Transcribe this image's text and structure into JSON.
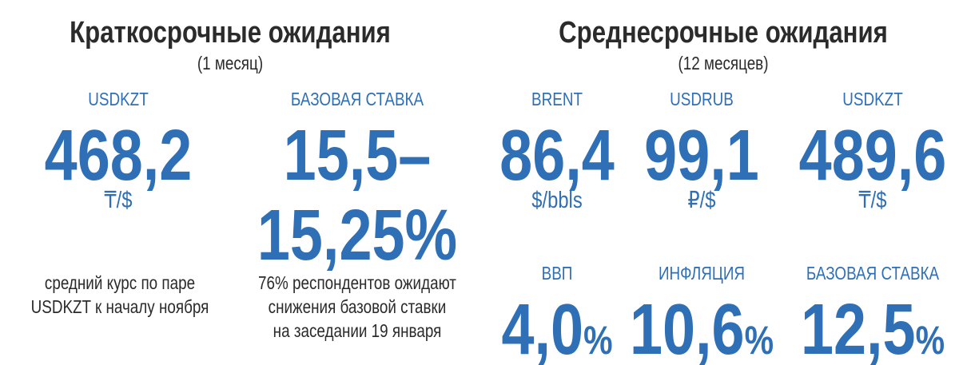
{
  "short_term": {
    "title": "Краткосрочные ожидания",
    "subtitle": "(1 месяц)",
    "items": [
      {
        "label": "USDKZT",
        "value": "468,2",
        "unit": "₸/$",
        "note": [
          "средний курс по паре",
          "USDKZT к началу ноября"
        ]
      },
      {
        "label": "БАЗОВАЯ СТАВКА",
        "value": [
          "15,5–",
          "15,25%"
        ],
        "note": [
          "76% респондентов ожидают",
          "снижения базовой ставки",
          "на заседании 19 января"
        ]
      }
    ]
  },
  "medium_term": {
    "title": "Среднесрочные ожидания",
    "subtitle": "(12 месяцев)",
    "items": [
      {
        "label": "BRENT",
        "value": "86,4",
        "unit": "$/bbls"
      },
      {
        "label": "USDRUB",
        "value": "99,1",
        "unit": "₽/$"
      },
      {
        "label": "USDKZT",
        "value": "489,6",
        "unit": "₸/$"
      },
      {
        "label": "ВВП",
        "value": "4,0",
        "suffix": "%"
      },
      {
        "label": "ИНФЛЯЦИЯ",
        "value": "10,6",
        "suffix": "%"
      },
      {
        "label": "БАЗОВАЯ СТАВКА",
        "value": "12,5",
        "suffix": "%"
      }
    ]
  }
}
